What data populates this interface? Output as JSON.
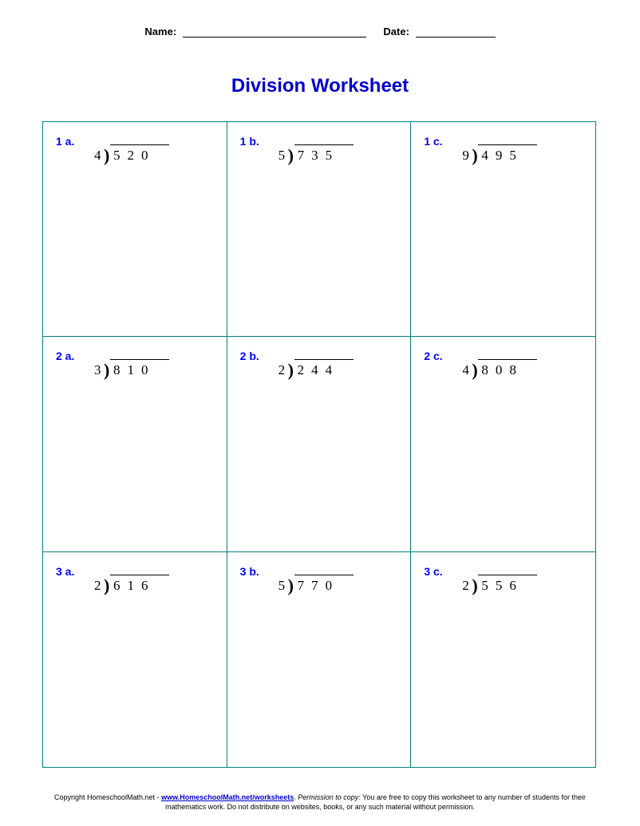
{
  "header": {
    "name_label": "Name:",
    "date_label": "Date:"
  },
  "title": "Division Worksheet",
  "colors": {
    "title_color": "#0000cc",
    "label_color": "#0000ff",
    "border_color": "#008080",
    "text_color": "#000000",
    "background_color": "#ffffff"
  },
  "grid": {
    "rows": 3,
    "cols": 3,
    "cells": [
      {
        "label": "1 a.",
        "divisor": "4",
        "dividend": "520"
      },
      {
        "label": "1 b.",
        "divisor": "5",
        "dividend": "735"
      },
      {
        "label": "1 c.",
        "divisor": "9",
        "dividend": "495"
      },
      {
        "label": "2 a.",
        "divisor": "3",
        "dividend": "810"
      },
      {
        "label": "2 b.",
        "divisor": "2",
        "dividend": "244"
      },
      {
        "label": "2 c.",
        "divisor": "4",
        "dividend": "808"
      },
      {
        "label": "3 a.",
        "divisor": "2",
        "dividend": "616"
      },
      {
        "label": "3 b.",
        "divisor": "5",
        "dividend": "770"
      },
      {
        "label": "3 c.",
        "divisor": "2",
        "dividend": "556"
      }
    ]
  },
  "footer": {
    "copyright_prefix": "Copyright HomeschoolMath.net - ",
    "link_text": "www.HomeschoolMath.net/worksheets",
    "permission_label": "Permission to copy:",
    "permission_text": " You are free to copy this worksheet to any number of students for their mathematics work. Do not distribute on websites, books, or any such material without permission."
  }
}
